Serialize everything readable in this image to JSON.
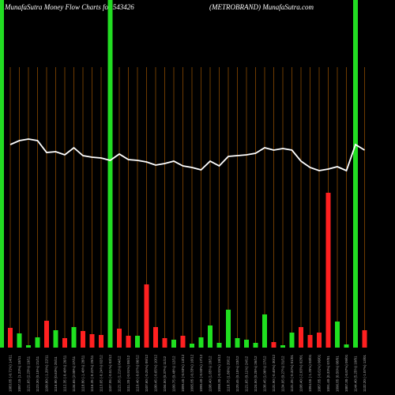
{
  "chart_data": {
    "type": "money-flow",
    "title": "MunafaSutra  Money Flow  Charts for 543426",
    "subtitle": "(METROBRAND) MunafaSutra.com",
    "categories": [
      "1083.85 (-0.71%) 14/11",
      "1097.15 (1.23%) 18/11",
      "1121.65 (2.23%) 19/11",
      "1123.30 (0.15%) 21/11",
      "1109.80 (-1.20%) 22/11",
      "1116.80 (0.63%) 25/11",
      "1112.35 (-0.40%) 26/11",
      "1134.65 (2.00%) 27/11",
      "1118.80 (-1.40%) 28/11",
      "1116.35 (-0.22%) 29/11",
      "1113.65 (-0.24%) 02/12",
      "1107.95 (-0.51%) 03/12",
      "1121.35 (1.21%) 04/12",
      "1111.20 (-0.91%) 05/12",
      "1110.40 (-0.07%) 06/12",
      "1107.60 (-0.25%) 09/12",
      "1100.45 (-0.65%) 10/12",
      "1104.50 (0.37%) 11/12",
      "1109.75 (0.48%) 12/12",
      "1099.45 (-0.93%) 13/12",
      "1095.85 (-0.33%) 16/12",
      "1090.40 (-0.50%) 17/12",
      "1108.40 (1.65%) 18/12",
      "1098.30 (-0.91%) 19/12",
      "1118.75 (1.86%) 20/12",
      "1120.45 (0.15%) 23/12",
      "1121.65 (0.11%) 24/12",
      "1124.50 (0.25%) 26/12",
      "1136.45 (1.06%) 27/12",
      "1131.90 (-0.40%) 30/12",
      "1134.95 (0.27%) 31/12",
      "1131.35 (-0.32%) 01/01",
      "1108.40 (-2.03%) 02/01",
      "1094.55 (-1.25%) 03/01",
      "1087.85 (-0.61%) 06/01",
      "1091.40 (0.33%) 07/01",
      "1096.85 (0.50%) 08/01",
      "1087.30 (-0.87%) 09/01",
      "1144.40 (5.25%) 10/01",
      "1132.20 (-1.07%) 13/01"
    ],
    "bar_values": [
      25,
      18,
      3,
      13,
      34,
      22,
      12,
      26,
      21,
      17,
      16,
      4,
      24,
      15,
      15,
      80,
      26,
      12,
      10,
      15,
      5,
      13,
      28,
      6,
      48,
      12,
      10,
      6,
      42,
      7,
      3,
      19,
      26,
      16,
      19,
      196,
      33,
      4,
      6,
      22
    ],
    "bar_colors": [
      "#ff2020",
      "#20e020",
      "#20e020",
      "#20e020",
      "#ff2020",
      "#20e020",
      "#ff2020",
      "#20e020",
      "#ff2020",
      "#ff2020",
      "#ff2020",
      "#20e020",
      "#ff2020",
      "#ff2020",
      "#20e020",
      "#ff2020",
      "#ff2020",
      "#ff2020",
      "#20e020",
      "#ff2020",
      "#20e020",
      "#20e020",
      "#20e020",
      "#20e020",
      "#20e020",
      "#20e020",
      "#20e020",
      "#20e020",
      "#20e020",
      "#ff2020",
      "#20e020",
      "#20e020",
      "#ff2020",
      "#ff2020",
      "#ff2020",
      "#ff2020",
      "#20e020",
      "#20e020",
      "#20e020",
      "#ff2020"
    ],
    "line_values": [
      257,
      262,
      264,
      262,
      247,
      248,
      244,
      253,
      243,
      241,
      240,
      237,
      245,
      238,
      237,
      235,
      231,
      233,
      236,
      230,
      228,
      225,
      236,
      230,
      242,
      243,
      244,
      246,
      253,
      250,
      252,
      250,
      236,
      228,
      224,
      226,
      229,
      224,
      257,
      250
    ],
    "line_color": "#ffffff",
    "highlights": [
      11,
      38
    ],
    "highlight_color": "#22dd22",
    "ylim": [
      0,
      440
    ]
  }
}
